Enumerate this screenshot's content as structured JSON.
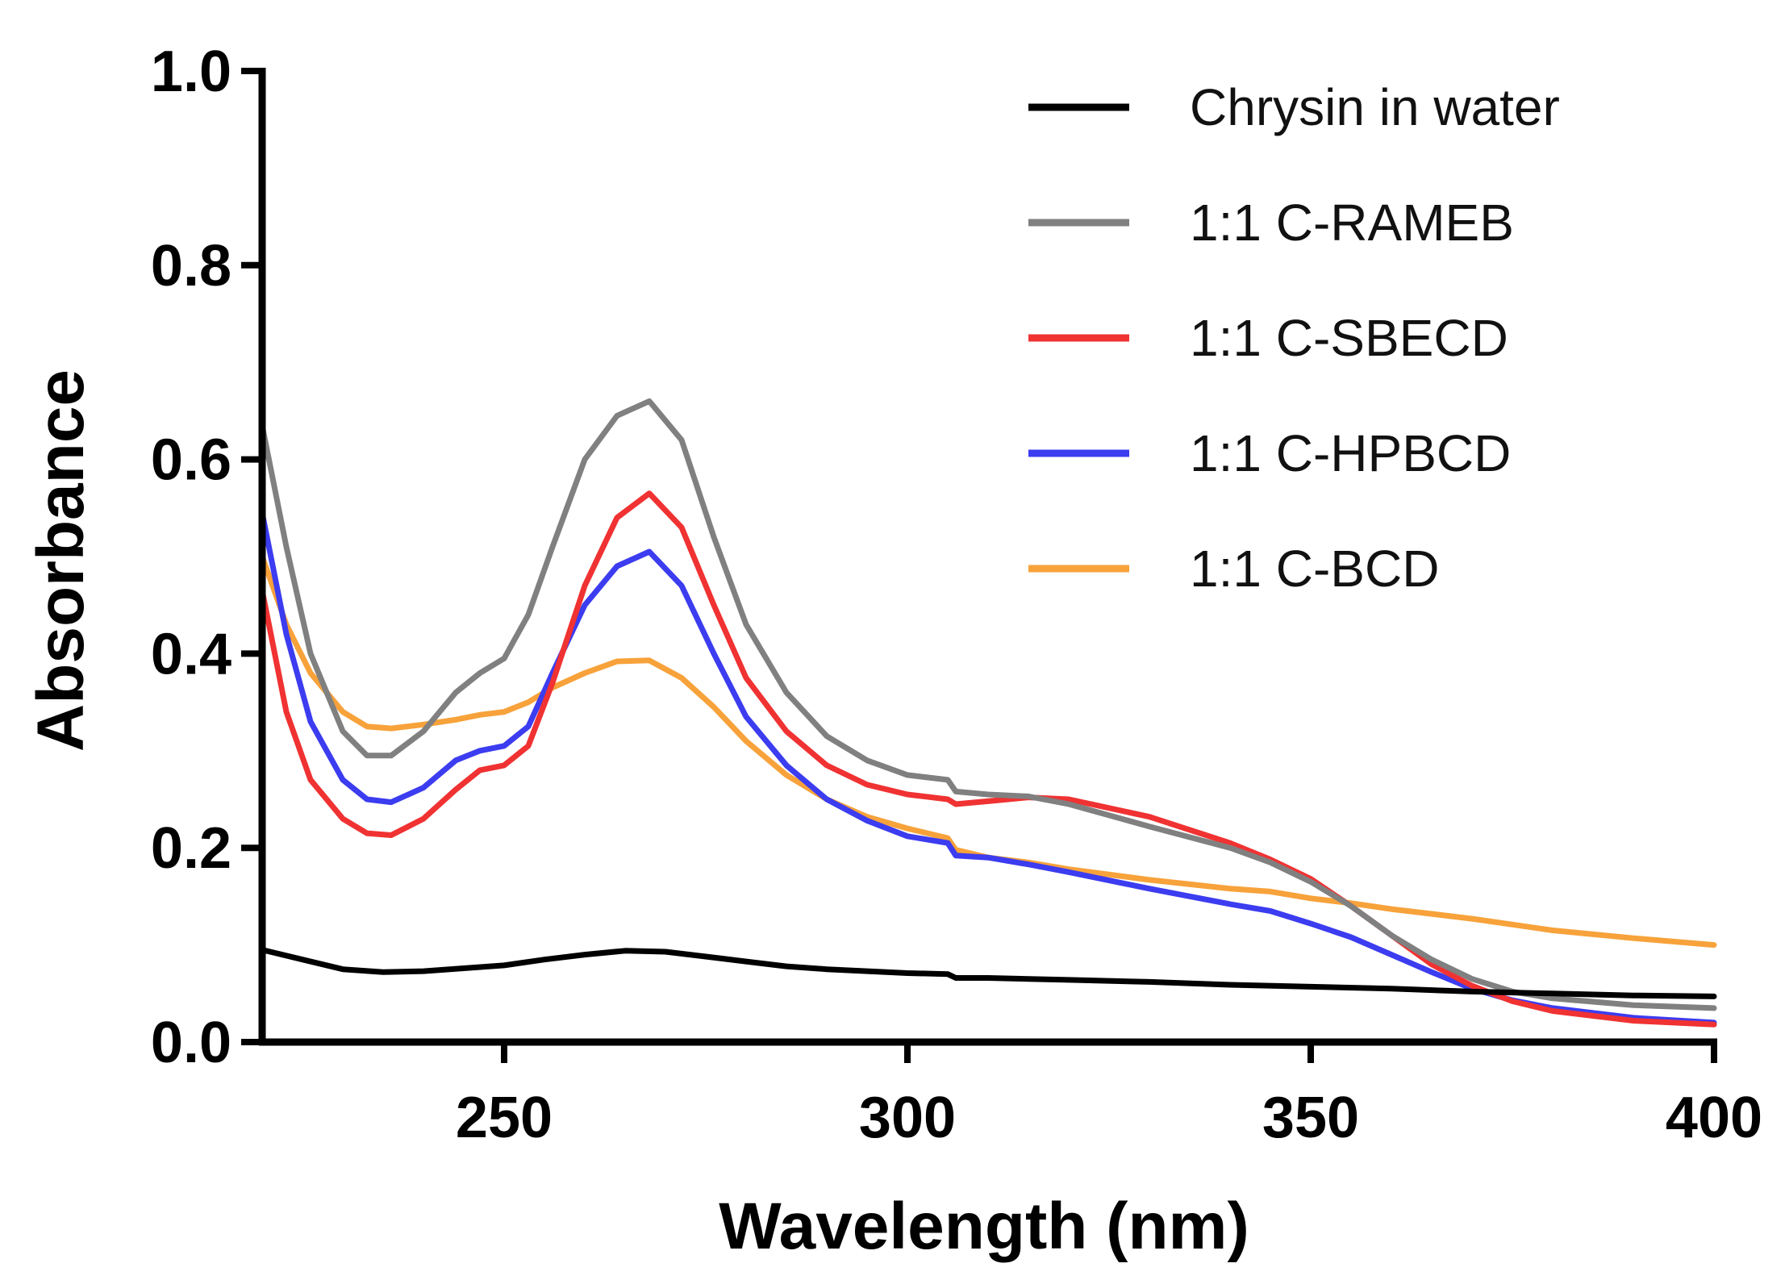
{
  "chart_data": {
    "type": "line",
    "title": "",
    "xlabel": "Wavelength (nm)",
    "ylabel": "Absorbance",
    "xlim": [
      220,
      400
    ],
    "ylim": [
      0,
      1.0
    ],
    "x_ticks": [
      250,
      300,
      350,
      400
    ],
    "x_tick_labels": [
      "250",
      "300",
      "350",
      "400"
    ],
    "y_ticks": [
      0,
      0.2,
      0.4,
      0.6,
      0.8,
      1.0
    ],
    "y_tick_labels": [
      "0.0",
      "0.2",
      "0.4",
      "0.6",
      "0.8",
      "1.0"
    ],
    "grid": false,
    "legend_position": "top-right",
    "series": [
      {
        "name": "Chrysin in water",
        "color": "#000000",
        "x": [
          220,
          225,
          230,
          235,
          240,
          245,
          250,
          255,
          260,
          265,
          270,
          275,
          280,
          285,
          290,
          295,
          300,
          305,
          306,
          310,
          320,
          330,
          340,
          350,
          360,
          370,
          380,
          390,
          400
        ],
        "y": [
          0.095,
          0.085,
          0.075,
          0.072,
          0.073,
          0.076,
          0.079,
          0.085,
          0.09,
          0.094,
          0.093,
          0.088,
          0.083,
          0.078,
          0.075,
          0.073,
          0.071,
          0.07,
          0.066,
          0.066,
          0.064,
          0.062,
          0.059,
          0.057,
          0.055,
          0.052,
          0.05,
          0.048,
          0.047
        ]
      },
      {
        "name": "1:1 C-RAMEB",
        "color": "#808080",
        "x": [
          220,
          223,
          226,
          230,
          233,
          236,
          240,
          244,
          247,
          250,
          253,
          256,
          260,
          264,
          268,
          272,
          276,
          280,
          285,
          290,
          295,
          300,
          305,
          306,
          310,
          315,
          320,
          330,
          340,
          345,
          350,
          355,
          360,
          365,
          370,
          375,
          380,
          390,
          400
        ],
        "y": [
          0.635,
          0.51,
          0.4,
          0.32,
          0.295,
          0.295,
          0.32,
          0.36,
          0.38,
          0.395,
          0.44,
          0.51,
          0.6,
          0.645,
          0.66,
          0.62,
          0.52,
          0.43,
          0.36,
          0.315,
          0.29,
          0.275,
          0.27,
          0.258,
          0.255,
          0.253,
          0.245,
          0.222,
          0.2,
          0.185,
          0.165,
          0.14,
          0.11,
          0.085,
          0.065,
          0.052,
          0.045,
          0.038,
          0.035
        ]
      },
      {
        "name": "1:1 C-SBECD",
        "color": "#f03232",
        "x": [
          220,
          223,
          226,
          230,
          233,
          236,
          240,
          244,
          247,
          250,
          253,
          256,
          260,
          264,
          268,
          272,
          276,
          280,
          285,
          290,
          295,
          300,
          305,
          306,
          310,
          315,
          320,
          330,
          340,
          345,
          350,
          355,
          360,
          365,
          370,
          375,
          380,
          390,
          400
        ],
        "y": [
          0.465,
          0.34,
          0.27,
          0.23,
          0.215,
          0.213,
          0.23,
          0.26,
          0.28,
          0.285,
          0.305,
          0.37,
          0.47,
          0.54,
          0.565,
          0.53,
          0.45,
          0.375,
          0.32,
          0.285,
          0.265,
          0.255,
          0.25,
          0.245,
          0.248,
          0.252,
          0.25,
          0.232,
          0.205,
          0.188,
          0.168,
          0.14,
          0.11,
          0.08,
          0.058,
          0.042,
          0.032,
          0.022,
          0.018
        ]
      },
      {
        "name": "1:1 C-HPBCD",
        "color": "#3c3cf0",
        "x": [
          220,
          223,
          226,
          230,
          233,
          236,
          240,
          244,
          247,
          250,
          253,
          256,
          260,
          264,
          268,
          272,
          276,
          280,
          285,
          290,
          295,
          300,
          305,
          306,
          310,
          315,
          320,
          330,
          340,
          345,
          350,
          355,
          360,
          365,
          370,
          375,
          380,
          390,
          400
        ],
        "y": [
          0.545,
          0.42,
          0.33,
          0.27,
          0.25,
          0.247,
          0.262,
          0.29,
          0.3,
          0.305,
          0.325,
          0.38,
          0.45,
          0.49,
          0.505,
          0.47,
          0.4,
          0.335,
          0.285,
          0.25,
          0.228,
          0.212,
          0.205,
          0.192,
          0.19,
          0.183,
          0.175,
          0.158,
          0.142,
          0.135,
          0.122,
          0.108,
          0.09,
          0.072,
          0.055,
          0.043,
          0.035,
          0.025,
          0.02
        ]
      },
      {
        "name": "1:1 C-BCD",
        "color": "#f7a23a",
        "x": [
          220,
          223,
          226,
          230,
          233,
          236,
          240,
          244,
          247,
          250,
          253,
          256,
          260,
          264,
          268,
          272,
          276,
          280,
          285,
          290,
          295,
          300,
          305,
          306,
          310,
          315,
          320,
          330,
          340,
          345,
          350,
          355,
          360,
          370,
          380,
          390,
          400
        ],
        "y": [
          0.5,
          0.43,
          0.38,
          0.34,
          0.325,
          0.323,
          0.327,
          0.332,
          0.337,
          0.34,
          0.35,
          0.365,
          0.38,
          0.392,
          0.393,
          0.375,
          0.345,
          0.31,
          0.275,
          0.25,
          0.232,
          0.22,
          0.21,
          0.198,
          0.19,
          0.185,
          0.178,
          0.167,
          0.158,
          0.155,
          0.148,
          0.143,
          0.137,
          0.127,
          0.115,
          0.107,
          0.1
        ]
      }
    ]
  }
}
